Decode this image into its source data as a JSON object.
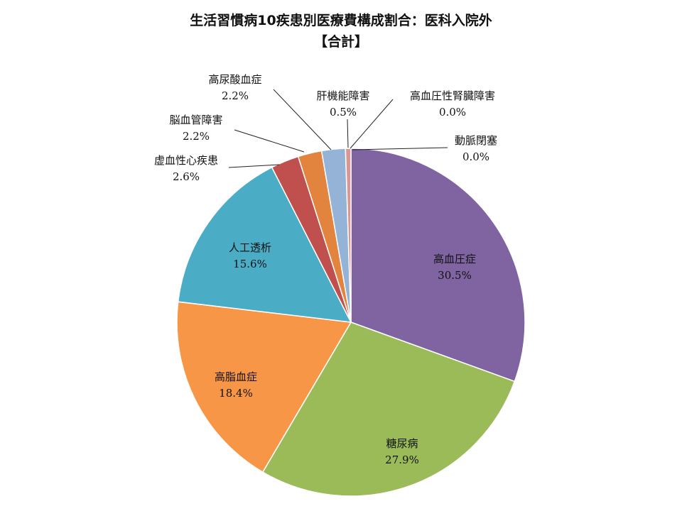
{
  "chart_data": {
    "type": "pie",
    "title": "生活習慣病10疾患別医療費構成割合：医科入院外",
    "subtitle": "【合計】",
    "slices": [
      {
        "label": "高血圧症",
        "value": 30.5,
        "value_label": "30.5%",
        "color": "#8064a2"
      },
      {
        "label": "糖尿病",
        "value": 27.9,
        "value_label": "27.9%",
        "color": "#9bbb59"
      },
      {
        "label": "高脂血症",
        "value": 18.4,
        "value_label": "18.4%",
        "color": "#f79646"
      },
      {
        "label": "人工透析",
        "value": 15.6,
        "value_label": "15.6%",
        "color": "#4bacc6"
      },
      {
        "label": "虚血性心疾患",
        "value": 2.6,
        "value_label": "2.6%",
        "color": "#c0504d"
      },
      {
        "label": "脳血管障害",
        "value": 2.2,
        "value_label": "2.2%",
        "color": "#e2843e"
      },
      {
        "label": "高尿酸血症",
        "value": 2.2,
        "value_label": "2.2%",
        "color": "#95b3d7"
      },
      {
        "label": "肝機能障害",
        "value": 0.5,
        "value_label": "0.5%",
        "color": "#d99694"
      },
      {
        "label": "高血圧性腎臓障害",
        "value": 0.0,
        "value_label": "0.0%",
        "color": "#8064a2"
      },
      {
        "label": "動脈閉塞",
        "value": 0.0,
        "value_label": "0.0%",
        "color": "#4f81bd"
      }
    ]
  }
}
